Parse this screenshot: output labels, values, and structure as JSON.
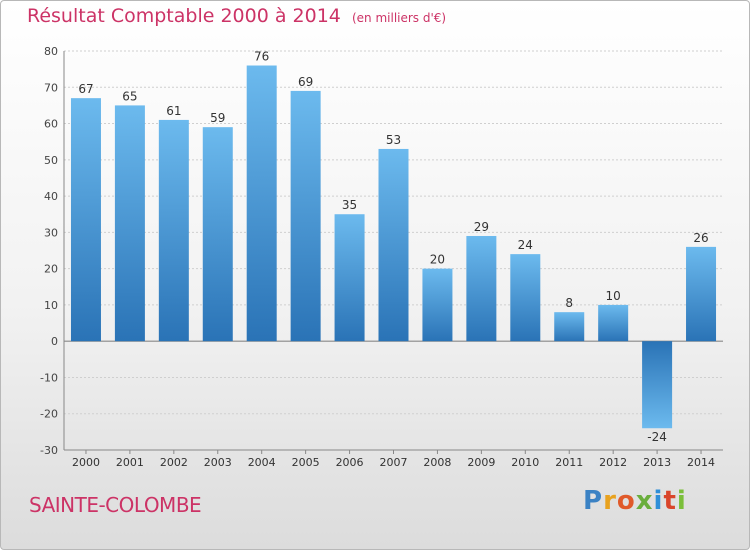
{
  "header": {
    "title": "Résultat Comptable 2000 à 2014",
    "subtitle": "(en milliers d'€)"
  },
  "footer": {
    "commune": "SAINTE-COLOMBE",
    "brand_letters": [
      "P",
      "r",
      "o",
      "x",
      "i",
      "t",
      "i"
    ],
    "brand_colors": [
      "#3b82c4",
      "#e8a21f",
      "#e05a2a",
      "#6aae3c",
      "#2f8fd8",
      "#d9452b",
      "#7bbf3a"
    ]
  },
  "colors": {
    "bar_top": "#6cbaee",
    "bar_bottom": "#2a73b6",
    "neg_top": "#2a73b6",
    "neg_bottom": "#6cbaee",
    "grid": "#cfcfcf",
    "zero_line": "#888888",
    "accent": "#cc3366"
  },
  "chart_data": {
    "type": "bar",
    "title": "Résultat Comptable 2000 à 2014",
    "subtitle": "(en milliers d'€)",
    "categories": [
      "2000",
      "2001",
      "2002",
      "2003",
      "2004",
      "2005",
      "2006",
      "2007",
      "2008",
      "2009",
      "2010",
      "2011",
      "2012",
      "2013",
      "2014"
    ],
    "values": [
      67,
      65,
      61,
      59,
      76,
      69,
      35,
      53,
      20,
      29,
      24,
      8,
      10,
      -24,
      26
    ],
    "data_labels": [
      "67",
      "65",
      "61",
      "59",
      "76",
      "69",
      "35",
      "53",
      "20",
      "29",
      "24",
      "8",
      "10",
      "-24",
      "26"
    ],
    "ylim": [
      -30,
      80
    ],
    "yticks": [
      80,
      70,
      60,
      50,
      40,
      30,
      20,
      10,
      0,
      -10,
      -20,
      -30
    ],
    "ytick_labels": [
      "80",
      "70",
      "60",
      "50",
      "40",
      "30",
      "20",
      "10",
      "0",
      "-10",
      "-20",
      "-30"
    ],
    "grid": true,
    "legend": false
  }
}
